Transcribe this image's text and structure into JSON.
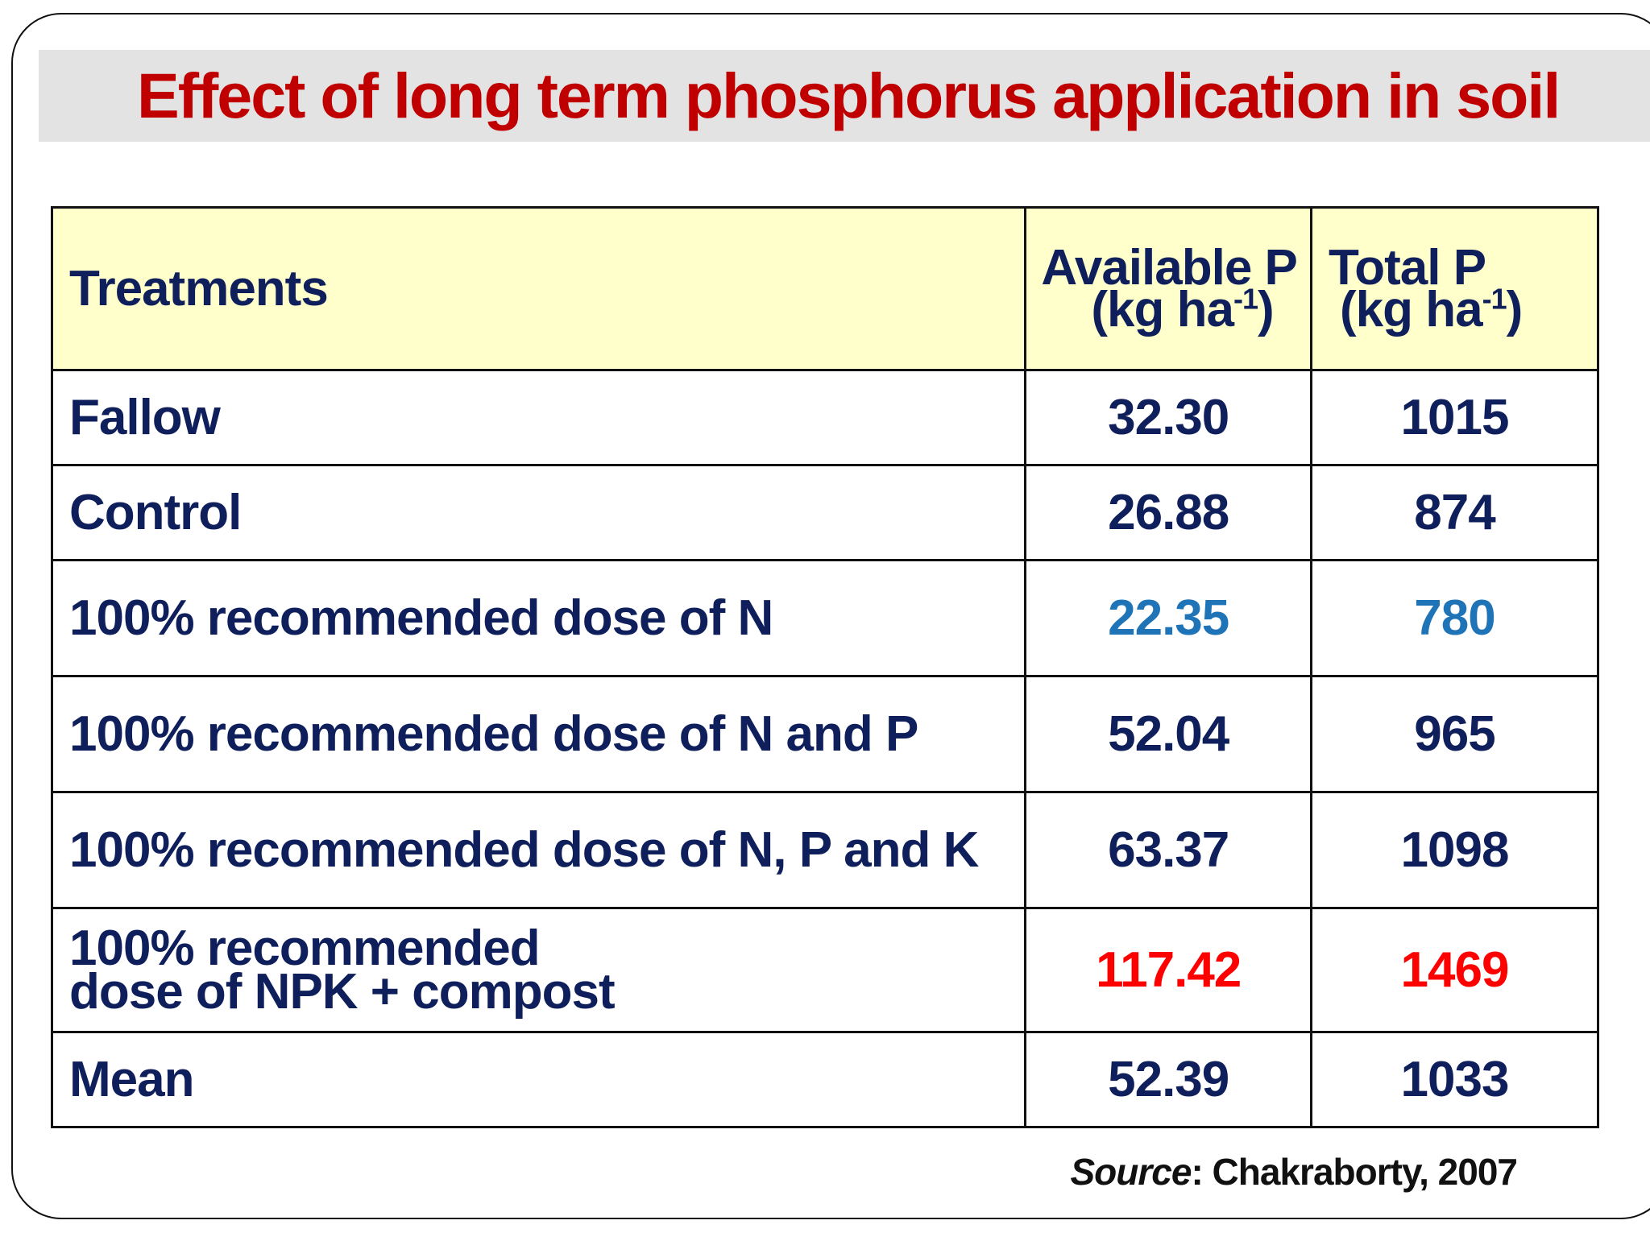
{
  "title": "Effect of long term phosphorus application in soil",
  "table": {
    "headers": {
      "treatments": "Treatments",
      "available_p": "Available P",
      "available_p_unit": "(kg ha",
      "total_p": "Total P",
      "total_p_unit": "(kg ha",
      "unit_exponent": "-1",
      "unit_close": ")"
    },
    "rows": [
      {
        "treatment": "Fallow",
        "available_p": "32.30",
        "total_p": "1015"
      },
      {
        "treatment": "Control",
        "available_p": "26.88",
        "total_p": "874"
      },
      {
        "treatment": "100% recommended dose of N",
        "available_p": "22.35",
        "total_p": "780"
      },
      {
        "treatment": "100% recommended dose of N and P",
        "available_p": "52.04",
        "total_p": "965"
      },
      {
        "treatment": "100% recommended dose of N, P and K",
        "available_p": "63.37",
        "total_p": "1098"
      },
      {
        "treatment": "100% recommended dose of NPK + compost",
        "available_p": "117.42",
        "total_p": "1469"
      },
      {
        "treatment": "Mean",
        "available_p": "52.39",
        "total_p": "1033"
      }
    ]
  },
  "source": {
    "label": "Source",
    "text": ": Chakraborty, 2007"
  },
  "colors": {
    "title": "#c00000",
    "text": "#0f1f5c",
    "highlight_low": "#1f74b8",
    "highlight_high": "#ff0000",
    "header_bg": "#ffffcc",
    "title_band": "#e3e3e3"
  }
}
